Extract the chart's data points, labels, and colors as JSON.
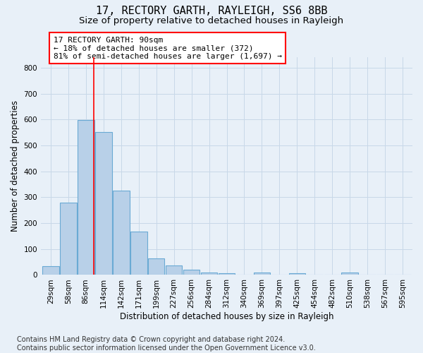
{
  "title1": "17, RECTORY GARTH, RAYLEIGH, SS6 8BB",
  "title2": "Size of property relative to detached houses in Rayleigh",
  "xlabel": "Distribution of detached houses by size in Rayleigh",
  "ylabel": "Number of detached properties",
  "footer": "Contains HM Land Registry data © Crown copyright and database right 2024.\nContains public sector information licensed under the Open Government Licence v3.0.",
  "categories": [
    "29sqm",
    "58sqm",
    "86sqm",
    "114sqm",
    "142sqm",
    "171sqm",
    "199sqm",
    "227sqm",
    "256sqm",
    "284sqm",
    "312sqm",
    "340sqm",
    "369sqm",
    "397sqm",
    "425sqm",
    "454sqm",
    "482sqm",
    "510sqm",
    "538sqm",
    "567sqm",
    "595sqm"
  ],
  "values": [
    35,
    280,
    597,
    552,
    325,
    168,
    65,
    37,
    21,
    10,
    8,
    0,
    10,
    0,
    8,
    0,
    0,
    10,
    0,
    0,
    0
  ],
  "bar_color": "#b8d0e8",
  "bar_edge_color": "#6aaad4",
  "vline_x_index": 2.45,
  "annotation_text": "17 RECTORY GARTH: 90sqm\n← 18% of detached houses are smaller (372)\n81% of semi-detached houses are larger (1,697) →",
  "annotation_box_color": "white",
  "annotation_box_edgecolor": "red",
  "ylim": [
    0,
    840
  ],
  "yticks": [
    0,
    100,
    200,
    300,
    400,
    500,
    600,
    700,
    800
  ],
  "grid_color": "#c8d8e8",
  "bg_color": "#e8f0f8",
  "plot_bg_color": "#e8f0f8",
  "title1_fontsize": 11,
  "title2_fontsize": 9.5,
  "axis_label_fontsize": 8.5,
  "tick_fontsize": 7.5,
  "footer_fontsize": 7,
  "ann_fontsize": 8
}
